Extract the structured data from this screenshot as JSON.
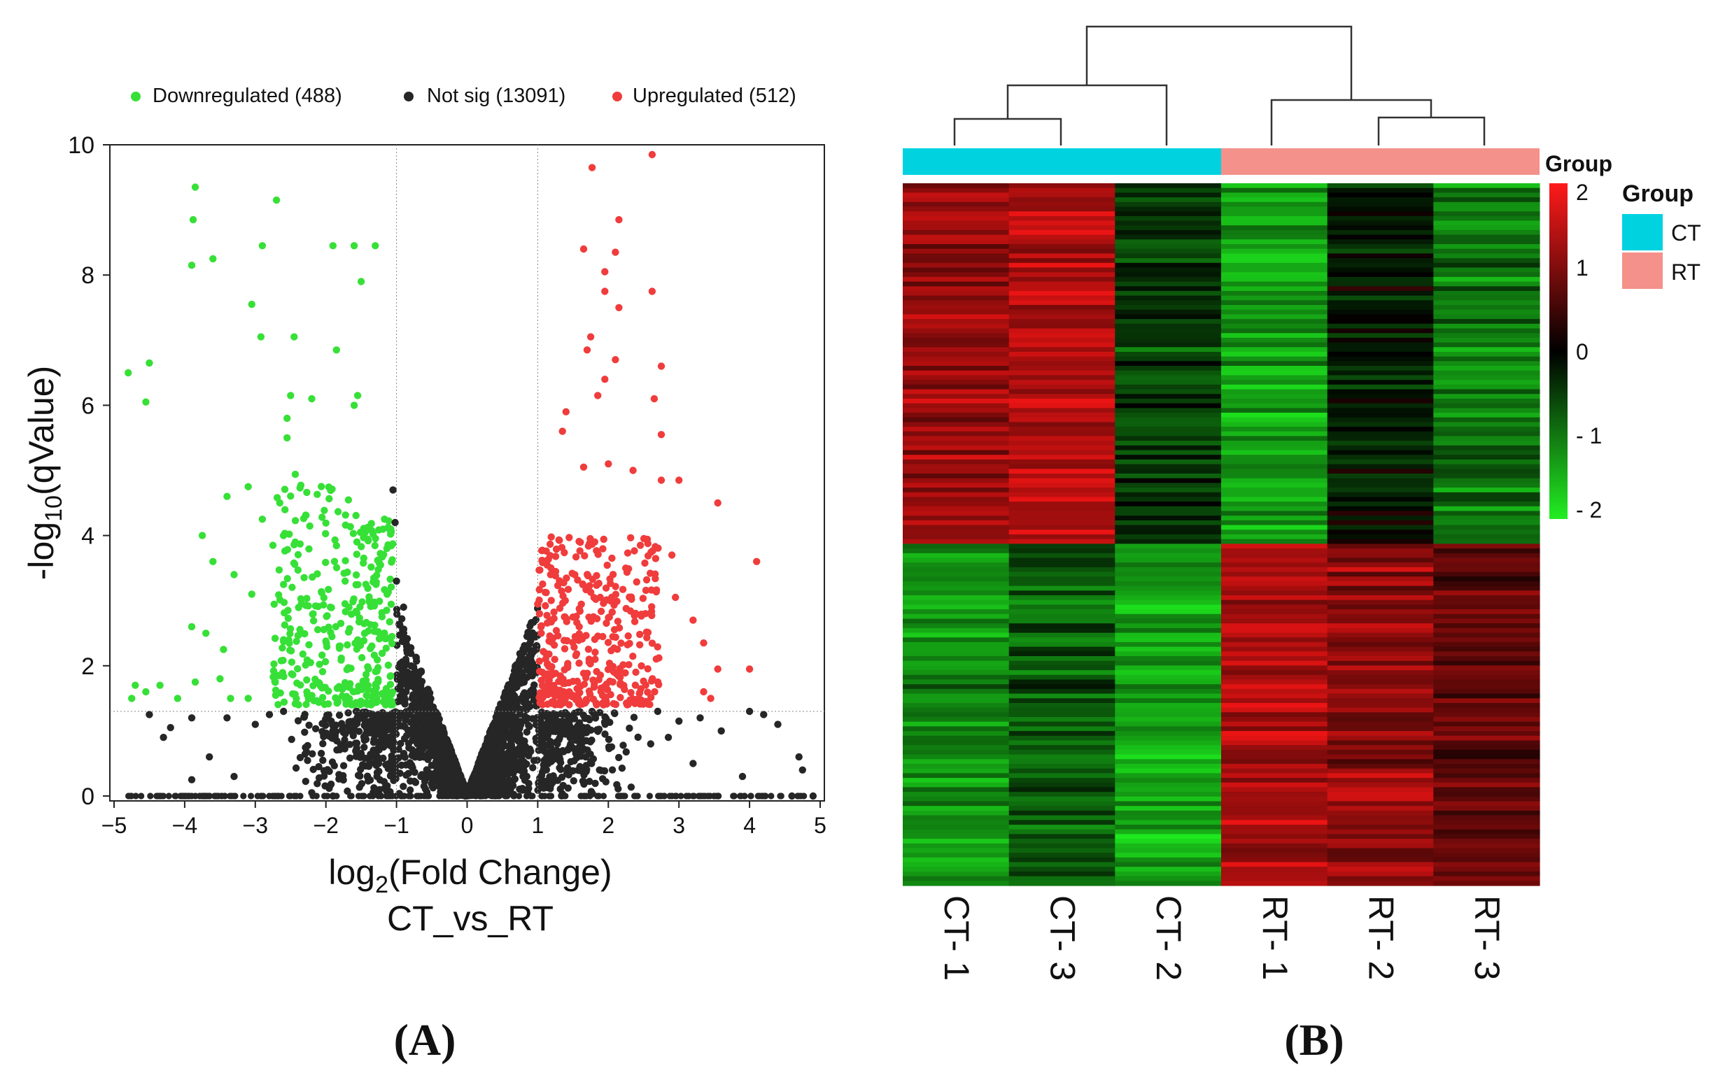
{
  "panel_labels": {
    "a": "(A)",
    "b": "(B)"
  },
  "chart_data": [
    {
      "type": "scatter",
      "chart_subtype": "volcano",
      "xlabel_base": "log",
      "xlabel_sub": "2",
      "xlabel_rest": "(Fold Change)",
      "subtitle": "CT_vs_RT",
      "ylabel_pre": "-log",
      "ylabel_sub": "10",
      "ylabel_rest": "(qValue)",
      "xlim": [
        -5,
        5
      ],
      "ylim": [
        0,
        10
      ],
      "x_ticks": [
        "−5",
        "−4",
        "−3",
        "−2",
        "−1",
        "0",
        "1",
        "2",
        "3",
        "4",
        "5"
      ],
      "y_ticks": [
        "0",
        "2",
        "4",
        "6",
        "8",
        "10"
      ],
      "fc_thresholds": [
        -1,
        1
      ],
      "q_threshold": 1.3,
      "legend": [
        {
          "label": "Downregulated (488)",
          "color": "#37e037"
        },
        {
          "label": "Not sig (13091)",
          "color": "#262626"
        },
        {
          "label": "Upregulated (512)",
          "color": "#f03c3c"
        }
      ],
      "series": [
        {
          "name": "Downregulated",
          "count": 488,
          "color": "#37e037",
          "points": [
            [
              -4.8,
              6.5
            ],
            [
              -4.5,
              6.65
            ],
            [
              -4.55,
              6.05
            ],
            [
              -3.85,
              9.35
            ],
            [
              -3.88,
              8.85
            ],
            [
              -3.9,
              8.15
            ],
            [
              -3.6,
              8.25
            ],
            [
              -3.05,
              7.55
            ],
            [
              -2.92,
              7.05
            ],
            [
              -2.9,
              8.45
            ],
            [
              -2.7,
              9.15
            ],
            [
              -2.45,
              7.05
            ],
            [
              -2.5,
              6.15
            ],
            [
              -2.55,
              5.8
            ],
            [
              -2.2,
              6.1
            ],
            [
              -1.85,
              6.85
            ],
            [
              -1.9,
              8.45
            ],
            [
              -1.6,
              8.45
            ],
            [
              -1.5,
              7.9
            ],
            [
              -1.3,
              8.45
            ],
            [
              -1.55,
              6.15
            ],
            [
              -1.6,
              6.0
            ],
            [
              -4.7,
              1.7
            ],
            [
              -4.75,
              1.5
            ],
            [
              -4.55,
              1.6
            ],
            [
              -4.35,
              1.7
            ],
            [
              -4.1,
              1.5
            ],
            [
              -3.85,
              1.75
            ],
            [
              -3.9,
              2.6
            ],
            [
              -3.7,
              2.5
            ],
            [
              -3.45,
              2.25
            ],
            [
              -3.5,
              1.8
            ],
            [
              -3.35,
              1.5
            ],
            [
              -3.1,
              1.5
            ],
            [
              -3.4,
              4.6
            ],
            [
              -3.6,
              3.6
            ],
            [
              -3.3,
              3.4
            ],
            [
              -3.1,
              4.75
            ],
            [
              -3.05,
              3.1
            ],
            [
              -2.9,
              4.25
            ],
            [
              -2.75,
              3.85
            ],
            [
              -2.6,
              2.4
            ],
            [
              -2.55,
              5.5
            ],
            [
              -3.75,
              4.0
            ]
          ]
        },
        {
          "name": "Not sig",
          "count": 13091,
          "color": "#262626",
          "points": [
            [
              -1.05,
              4.7
            ],
            [
              -1.02,
              4.2
            ],
            [
              -1.0,
              3.3
            ],
            [
              -0.9,
              2.9
            ],
            [
              -4.5,
              1.25
            ],
            [
              -4.2,
              1.05
            ],
            [
              -4.3,
              0.9
            ],
            [
              -3.9,
              1.2
            ],
            [
              -3.65,
              0.6
            ],
            [
              -3.4,
              1.2
            ],
            [
              -3.0,
              1.1
            ],
            [
              -2.8,
              1.25
            ],
            [
              -2.6,
              1.3
            ],
            [
              -3.9,
              0.25
            ],
            [
              -3.3,
              0.3
            ],
            [
              -2.2,
              0.05
            ],
            [
              2.7,
              1.3
            ],
            [
              3.0,
              1.15
            ],
            [
              3.3,
              1.2
            ],
            [
              3.6,
              1.0
            ],
            [
              3.2,
              0.5
            ],
            [
              3.9,
              0.3
            ],
            [
              4.0,
              1.3
            ],
            [
              4.4,
              1.1
            ],
            [
              4.7,
              0.6
            ],
            [
              4.75,
              0.4
            ],
            [
              4.2,
              1.25
            ],
            [
              4.6,
              0.0
            ],
            [
              4.9,
              0.0
            ],
            [
              2.85,
              0.9
            ],
            [
              2.6,
              0.8
            ]
          ]
        },
        {
          "name": "Upregulated",
          "count": 512,
          "color": "#f03c3c",
          "points": [
            [
              2.62,
              9.85
            ],
            [
              1.77,
              9.65
            ],
            [
              2.15,
              8.85
            ],
            [
              1.65,
              8.4
            ],
            [
              2.1,
              8.35
            ],
            [
              1.95,
              8.05
            ],
            [
              1.95,
              7.75
            ],
            [
              2.62,
              7.75
            ],
            [
              2.15,
              7.5
            ],
            [
              1.75,
              7.05
            ],
            [
              1.7,
              6.85
            ],
            [
              2.1,
              6.7
            ],
            [
              2.75,
              6.6
            ],
            [
              1.95,
              6.4
            ],
            [
              1.85,
              6.15
            ],
            [
              2.65,
              6.1
            ],
            [
              2.75,
              5.55
            ],
            [
              1.4,
              5.9
            ],
            [
              1.35,
              5.6
            ],
            [
              3.55,
              4.5
            ],
            [
              3.0,
              4.85
            ],
            [
              2.75,
              4.85
            ],
            [
              2.9,
              3.7
            ],
            [
              2.95,
              3.05
            ],
            [
              3.2,
              2.7
            ],
            [
              3.35,
              2.35
            ],
            [
              3.55,
              1.95
            ],
            [
              3.35,
              1.6
            ],
            [
              3.45,
              1.5
            ],
            [
              4.1,
              3.6
            ],
            [
              4.0,
              1.95
            ],
            [
              2.0,
              5.1
            ],
            [
              1.65,
              5.05
            ],
            [
              2.35,
              5.0
            ],
            [
              1.0,
              2.95
            ],
            [
              1.05,
              2.5
            ]
          ]
        }
      ],
      "cluster_background": {
        "color": "#000000",
        "note": "dense points"
      }
    },
    {
      "type": "heatmap",
      "columns": [
        "CT- 1",
        "CT- 3",
        "CT- 2",
        "RT- 1",
        "RT- 2",
        "RT- 3"
      ],
      "column_groups": [
        "CT",
        "CT",
        "CT",
        "RT",
        "RT",
        "RT"
      ],
      "group_annotation_label": "Group",
      "group_legend": {
        "title": "Group",
        "items": [
          {
            "label": "CT",
            "color": "#00d2e0"
          },
          {
            "label": "RT",
            "color": "#f4918a"
          }
        ]
      },
      "color_scale": {
        "min": -2,
        "max": 2,
        "ticks": [
          "2",
          "1",
          "0",
          "- 1",
          "- 2"
        ],
        "colors": [
          "#ff1a1a",
          "#000000",
          "#22ee22"
        ]
      },
      "row_blocks": [
        {
          "rows": "upper cluster",
          "mean_values": [
            1.3,
            1.5,
            -0.5,
            -1.4,
            -0.2,
            -1.0
          ]
        },
        {
          "rows": "lower cluster",
          "mean_values": [
            -1.2,
            -0.8,
            -1.4,
            1.5,
            1.2,
            0.8
          ]
        }
      ],
      "dendrogram": "hierarchical: ((CT-1, CT-3), CT-2), (RT-1, (RT-2, RT-3))"
    }
  ]
}
